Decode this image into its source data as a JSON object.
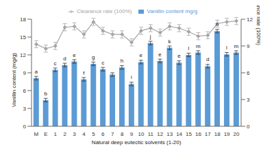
{
  "chart_data": {
    "type": "bar",
    "x_label": "Natural deep eutectic solvents (1-20)",
    "y_label": "Vanillin content (mg/g)",
    "y2_label": "Clearance rate (100%)",
    "categories": [
      "M",
      "E",
      "1",
      "2",
      "3",
      "4",
      "5",
      "6",
      "7",
      "8",
      "9",
      "10",
      "11",
      "12",
      "13",
      "14",
      "15",
      "16",
      "17",
      "18",
      "19",
      "20"
    ],
    "ylim": [
      0,
      18
    ],
    "yticks": [
      0,
      3,
      6,
      9,
      12,
      15,
      18
    ],
    "y2lim": [
      0,
      12
    ],
    "y2ticks": [
      0,
      3,
      6,
      9,
      12
    ],
    "grid": false,
    "legend": "top",
    "series": [
      {
        "name": "Vanillin content mg/g",
        "type": "bar",
        "color": "#5b9bd5",
        "values": [
          8.1,
          4.4,
          9.5,
          10.3,
          10.9,
          7.9,
          10.5,
          9.6,
          8.7,
          9.9,
          7.1,
          10.8,
          14.0,
          11.0,
          13.2,
          10.7,
          12.0,
          12.4,
          10.1,
          16.0,
          12.1,
          12.4
        ],
        "errors": [
          0.3,
          0.3,
          0.3,
          0.3,
          0.3,
          0.3,
          0.3,
          0.3,
          0.3,
          0.3,
          0.3,
          0.3,
          0.3,
          0.3,
          0.3,
          0.3,
          0.3,
          0.3,
          0.3,
          0.3,
          0.3,
          0.3
        ],
        "letters": [
          "a",
          "b",
          "c",
          "d",
          "e",
          "f",
          "g",
          "c",
          null,
          "h",
          "i",
          "e",
          "j",
          "e",
          "k",
          "e",
          "l",
          "m",
          "d",
          "n",
          "l",
          "m"
        ]
      },
      {
        "name": "Clearance rate (100%)",
        "type": "line",
        "axis": "y2",
        "color": "#a5a5a5",
        "marker": "diamond",
        "values": [
          9.2,
          8.7,
          9.0,
          11.1,
          11.2,
          10.3,
          11.7,
          10.7,
          10.3,
          10.3,
          9.4,
          10.7,
          11.0,
          10.5,
          11.2,
          11.0,
          10.6,
          10.1,
          10.2,
          11.5,
          11.7,
          11.8
        ],
        "errors": [
          0.4,
          0.4,
          0.4,
          0.4,
          0.4,
          0.4,
          0.4,
          0.4,
          0.4,
          0.4,
          0.4,
          0.4,
          0.4,
          0.4,
          0.4,
          0.4,
          0.4,
          0.4,
          0.4,
          0.4,
          0.4,
          0.4
        ]
      }
    ]
  }
}
